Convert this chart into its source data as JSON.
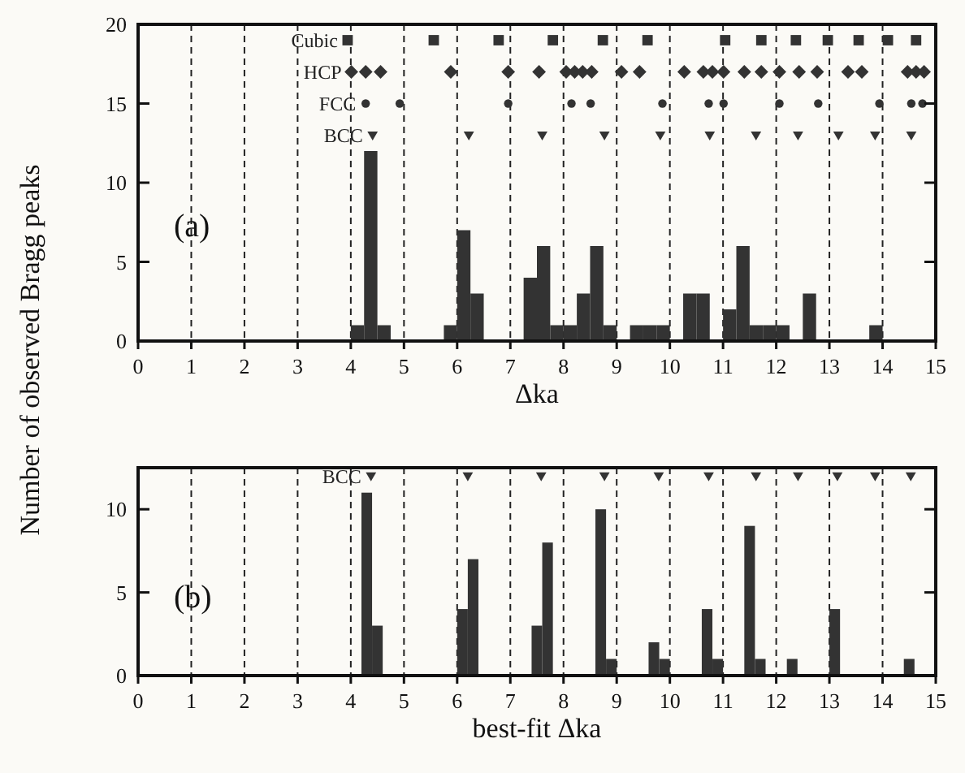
{
  "chart_data": [
    {
      "type": "histogram",
      "ylabel": "Number of observed Bragg peaks",
      "xlabel": "Δka",
      "annotations": [
        "(a)"
      ],
      "color": "#333333",
      "grid": "x",
      "xlim": [
        0,
        15
      ],
      "xticks": [
        0,
        1,
        2,
        3,
        4,
        5,
        6,
        7,
        8,
        9,
        10,
        11,
        12,
        13,
        14,
        15
      ],
      "ylim": [
        0,
        20
      ],
      "yticks": [
        0,
        5,
        10,
        15,
        20
      ],
      "bins": [
        4,
        4.25,
        4.5,
        4.75,
        5,
        5.25,
        5.5,
        5.75,
        6,
        6.25,
        6.5,
        6.75,
        7,
        7.25,
        7.5,
        7.75,
        8,
        8.25,
        8.5,
        8.75,
        9,
        9.25,
        9.5,
        9.75,
        10,
        10.25,
        10.5,
        10.75,
        11,
        11.25,
        11.5,
        11.75,
        12,
        12.25,
        12.5,
        12.75,
        13,
        13.25,
        13.5,
        13.75,
        14
      ],
      "values": [
        1,
        12,
        1,
        0,
        0,
        0,
        0,
        1,
        7,
        3,
        0,
        0,
        0,
        4,
        6,
        1,
        1,
        3,
        6,
        1,
        0,
        1,
        1,
        1,
        0,
        3,
        3,
        0,
        2,
        6,
        1,
        1,
        1,
        0,
        3,
        0,
        0,
        0,
        0,
        1
      ],
      "series": [
        {
          "name": "Cubic",
          "type": "scatter",
          "marker": "square",
          "color": "#333333",
          "x": [
            3.94,
            5.56,
            6.78,
            7.8,
            8.74,
            9.58,
            11.04,
            11.72,
            12.37,
            12.97,
            13.55,
            14.1,
            14.63
          ],
          "values": [
            19,
            19,
            19,
            19,
            19,
            19,
            19,
            19,
            19,
            19,
            19,
            19,
            19
          ]
        },
        {
          "name": "HCP",
          "type": "scatter",
          "marker": "diamond",
          "color": "#333333",
          "x": [
            4.01,
            4.28,
            4.56,
            5.88,
            6.96,
            7.54,
            8.05,
            8.21,
            8.36,
            8.53,
            9.09,
            9.43,
            10.27,
            10.63,
            10.8,
            11.01,
            11.4,
            11.72,
            12.06,
            12.43,
            12.77,
            13.35,
            13.61,
            14.47,
            14.63,
            14.78
          ],
          "values": [
            17,
            17,
            17,
            17,
            17,
            17,
            17,
            17,
            17,
            17,
            17,
            17,
            17,
            17,
            17,
            17,
            17,
            17,
            17,
            17,
            17,
            17,
            17,
            17,
            17,
            17
          ]
        },
        {
          "name": "FCC",
          "type": "scatter",
          "marker": "circle",
          "color": "#333333",
          "x": [
            4.28,
            4.92,
            6.96,
            8.15,
            8.51,
            9.86,
            10.73,
            11.01,
            12.06,
            12.79,
            13.94,
            14.54,
            14.75
          ],
          "values": [
            15,
            15,
            15,
            15,
            15,
            15,
            15,
            15,
            15,
            15,
            15,
            15,
            15
          ]
        },
        {
          "name": "BCC",
          "type": "scatter",
          "marker": "triangle",
          "color": "#333333",
          "x": [
            4.41,
            6.22,
            7.6,
            8.77,
            9.82,
            10.75,
            11.62,
            12.41,
            13.17,
            13.86,
            14.54
          ],
          "values": [
            13,
            13,
            13,
            13,
            13,
            13,
            13,
            13,
            13,
            13,
            13
          ]
        }
      ]
    },
    {
      "type": "histogram",
      "xlabel": "best-fit Δka",
      "annotations": [
        "(b)"
      ],
      "color": "#333333",
      "grid": "x",
      "xlim": [
        0,
        15
      ],
      "xticks": [
        0,
        1,
        2,
        3,
        4,
        5,
        6,
        7,
        8,
        9,
        10,
        11,
        12,
        13,
        14,
        15
      ],
      "ylim": [
        0,
        12.5
      ],
      "yticks": [
        0,
        5,
        10
      ],
      "bins": [
        4.2,
        4.4,
        4.6,
        4.8,
        5,
        5.2,
        5.4,
        5.6,
        5.8,
        6,
        6.2,
        6.4,
        6.6,
        6.8,
        7,
        7.2,
        7.4,
        7.6,
        7.8,
        8,
        8.2,
        8.4,
        8.6,
        8.8,
        9,
        9.2,
        9.4,
        9.6,
        9.8,
        10,
        10.2,
        10.4,
        10.6,
        10.8,
        11,
        11.2,
        11.4,
        11.6,
        11.8,
        12,
        12.2,
        12.4,
        12.6,
        12.8,
        13,
        13.2,
        13.4,
        13.6,
        13.8,
        14,
        14.2,
        14.4,
        14.6
      ],
      "values": [
        11,
        3,
        0,
        0,
        0,
        0,
        0,
        0,
        0,
        4,
        7,
        0,
        0,
        0,
        0,
        0,
        3,
        8,
        0,
        0,
        0,
        0,
        10,
        1,
        0,
        0,
        0,
        2,
        1,
        0,
        0,
        0,
        4,
        1,
        0,
        0,
        9,
        1,
        0,
        0,
        1,
        0,
        0,
        0,
        4,
        0,
        0,
        0,
        0,
        0,
        0,
        1
      ],
      "series": [
        {
          "name": "BCC",
          "type": "scatter",
          "marker": "triangle",
          "color": "#333333",
          "x": [
            4.38,
            6.2,
            7.58,
            8.77,
            9.79,
            10.73,
            11.62,
            12.41,
            13.15,
            13.86,
            14.53
          ],
          "values": [
            12,
            12,
            12,
            12,
            12,
            12,
            12,
            12,
            12,
            12,
            12
          ]
        }
      ]
    }
  ]
}
